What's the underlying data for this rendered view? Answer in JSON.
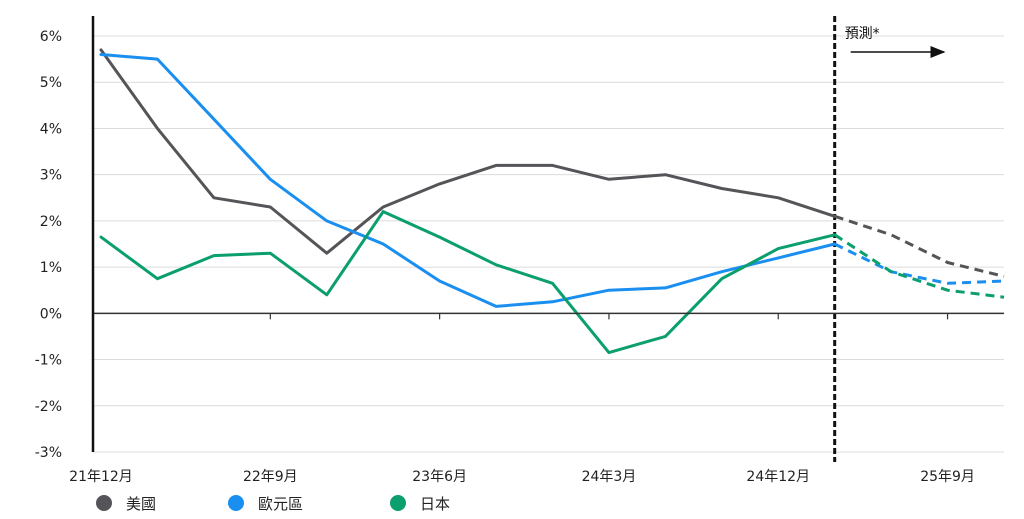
{
  "chart_data": {
    "type": "line",
    "title": "",
    "xlabel": "",
    "ylabel": "",
    "ylim": [
      -3,
      6
    ],
    "y_ticks": [
      6,
      5,
      4,
      3,
      2,
      1,
      0,
      -1,
      -2,
      -3
    ],
    "y_tick_labels": [
      "6%",
      "5%",
      "4%",
      "3%",
      "2%",
      "1%",
      "0%",
      "-1%",
      "-2%",
      "-3%"
    ],
    "grid": true,
    "x_index_range": [
      0,
      16
    ],
    "x_ticks": [
      {
        "index": 0,
        "label": "21年12月"
      },
      {
        "index": 3,
        "label": "22年9月"
      },
      {
        "index": 6,
        "label": "23年6月"
      },
      {
        "index": 9,
        "label": "24年3月"
      },
      {
        "index": 12,
        "label": "24年12月"
      },
      {
        "index": 15,
        "label": "25年9月"
      }
    ],
    "forecast_start_index": 13,
    "forecast_label": "預測*",
    "legend_position": "bottom-left",
    "series": [
      {
        "name": "美國",
        "color": "#555559",
        "actual_x": [
          0,
          1,
          2,
          3,
          4,
          5,
          6,
          7,
          8,
          9,
          10,
          11,
          12,
          13
        ],
        "actual_y": [
          5.7,
          4.0,
          2.5,
          2.3,
          1.3,
          2.3,
          2.8,
          3.2,
          3.2,
          2.9,
          3.0,
          2.7,
          2.5,
          2.1
        ],
        "forecast_x": [
          13,
          14,
          15,
          16
        ],
        "forecast_y": [
          2.1,
          1.7,
          1.1,
          0.8
        ]
      },
      {
        "name": "歐元區",
        "color": "#1a8ff0",
        "actual_x": [
          0,
          1,
          2,
          3,
          4,
          5,
          6,
          7,
          8,
          9,
          10,
          11,
          12,
          13
        ],
        "actual_y": [
          5.6,
          5.5,
          4.2,
          2.9,
          2.0,
          1.5,
          0.7,
          0.15,
          0.25,
          0.5,
          0.55,
          0.9,
          1.2,
          1.5
        ],
        "forecast_x": [
          13,
          14,
          15,
          16
        ],
        "forecast_y": [
          1.5,
          0.9,
          0.65,
          0.7
        ]
      },
      {
        "name": "日本",
        "color": "#0b9e6e",
        "actual_x": [
          0,
          1,
          2,
          3,
          4,
          5,
          6,
          7,
          8,
          9,
          10,
          11,
          12,
          13
        ],
        "actual_y": [
          1.65,
          0.75,
          1.25,
          1.3,
          0.4,
          2.2,
          1.65,
          1.05,
          0.65,
          -0.85,
          -0.5,
          0.75,
          1.4,
          1.7
        ],
        "forecast_x": [
          13,
          14,
          15,
          16
        ],
        "forecast_y": [
          1.7,
          0.9,
          0.5,
          0.35
        ]
      }
    ]
  }
}
